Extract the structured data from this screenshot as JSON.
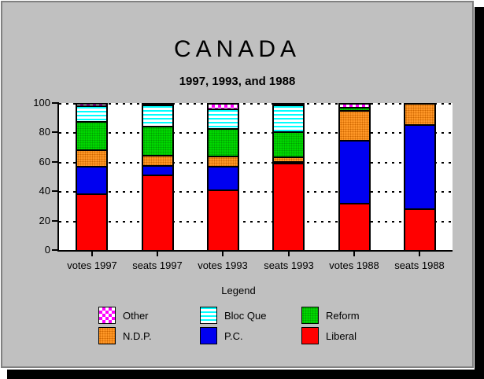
{
  "title": "CANADA",
  "subtitle": "1997, 1993, and 1988",
  "window": {
    "background": "#C0C0C0",
    "border_color": "#808080",
    "shadow_color": "#000000"
  },
  "legend": {
    "title": "Legend",
    "items": [
      {
        "label": "Other",
        "pattern": "checker",
        "color": "#FF00FF",
        "dot": "#FF00FF"
      },
      {
        "label": "Bloc Que",
        "pattern": "hstripes",
        "color": "#00FFFF",
        "dot": "#00FFFF"
      },
      {
        "label": "Reform",
        "pattern": "dots",
        "color": "#00D800",
        "dot": "#00A000"
      },
      {
        "label": "N.D.P.",
        "pattern": "dots",
        "color": "#FF9828",
        "dot": "#D06800"
      },
      {
        "label": "P.C.",
        "pattern": "solid",
        "color": "#0000F0",
        "dot": "#0000F0"
      },
      {
        "label": "Liberal",
        "pattern": "solid",
        "color": "#FF0000",
        "dot": "#FF0000"
      }
    ]
  },
  "chart_data": {
    "type": "bar",
    "stacked": true,
    "title": "CANADA",
    "subtitle": "1997, 1993, and 1988",
    "xlabel": "",
    "ylabel": "",
    "ylim": [
      0,
      100
    ],
    "yticks": [
      0,
      20,
      40,
      60,
      80,
      100
    ],
    "grid": "dashed-horizontal",
    "legend_position": "bottom",
    "categories": [
      "votes 1997",
      "seats 1997",
      "votes 1993",
      "seats 1993",
      "votes 1988",
      "seats 1988"
    ],
    "series": [
      {
        "name": "Liberal",
        "values": [
          38.5,
          51.5,
          41.3,
          60.0,
          32.0,
          28.1
        ]
      },
      {
        "name": "P.C.",
        "values": [
          18.8,
          6.6,
          16.0,
          0.7,
          43.0,
          57.3
        ]
      },
      {
        "name": "N.D.P.",
        "values": [
          11.0,
          7.0,
          6.9,
          3.1,
          20.4,
          14.6
        ]
      },
      {
        "name": "Reform",
        "values": [
          19.4,
          19.9,
          18.7,
          17.6,
          2.1,
          0
        ]
      },
      {
        "name": "Bloc Que",
        "values": [
          10.7,
          14.6,
          13.5,
          18.3,
          0,
          0
        ]
      },
      {
        "name": "Other",
        "values": [
          1.6,
          0.4,
          3.6,
          0.3,
          2.5,
          0
        ]
      }
    ]
  }
}
